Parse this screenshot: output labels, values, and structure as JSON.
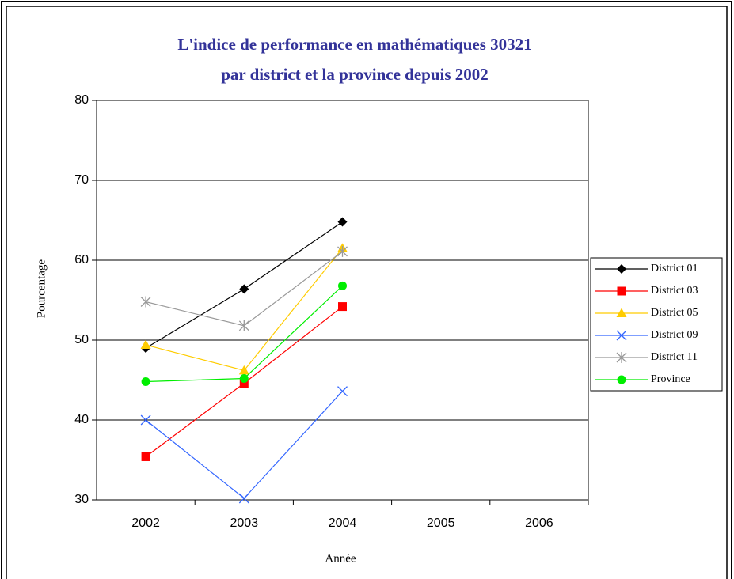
{
  "chart_data": {
    "type": "line",
    "title": [
      "L'indice de performance en mathématiques 30321",
      "par district et la province depuis 2002"
    ],
    "x_label": "Année",
    "y_label": "Pourcentage",
    "categories": [
      "2002",
      "2003",
      "2004",
      "2005",
      "2006"
    ],
    "ylim": [
      30,
      80
    ],
    "yticks": [
      30,
      40,
      50,
      60,
      70,
      80
    ],
    "grid": true,
    "legend": "right",
    "series": [
      {
        "name": "District 01",
        "color": "#000000",
        "marker": "diamond",
        "values": [
          49.0,
          56.4,
          64.8,
          null,
          null
        ]
      },
      {
        "name": "District 03",
        "color": "#ff0000",
        "marker": "square",
        "values": [
          35.4,
          44.6,
          54.2,
          null,
          null
        ]
      },
      {
        "name": "District 05",
        "color": "#ffcc00",
        "marker": "triangle",
        "values": [
          49.4,
          46.2,
          61.5,
          null,
          null
        ]
      },
      {
        "name": "District 09",
        "color": "#3366ff",
        "marker": "x",
        "values": [
          40.0,
          30.2,
          43.6,
          null,
          null
        ]
      },
      {
        "name": "District 11",
        "color": "#999999",
        "marker": "star",
        "values": [
          54.8,
          51.8,
          61.1,
          null,
          null
        ]
      },
      {
        "name": "Province",
        "color": "#00ee00",
        "marker": "circle",
        "values": [
          44.8,
          45.2,
          56.8,
          null,
          null
        ]
      }
    ]
  }
}
